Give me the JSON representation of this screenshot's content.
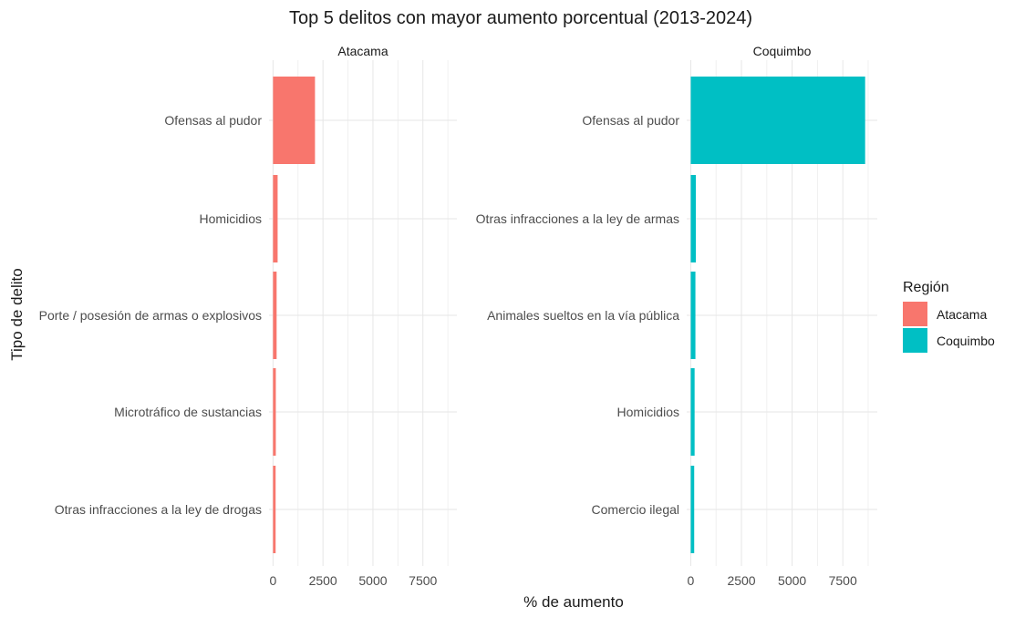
{
  "chart_data": {
    "type": "bar",
    "orientation": "horizontal",
    "title": "Top 5 delitos con mayor aumento porcentual (2013-2024)",
    "xlabel": "% de aumento",
    "ylabel": "Tipo de delito",
    "xlim": [
      -200,
      9200
    ],
    "x_ticks": [
      0,
      2500,
      5000,
      7500
    ],
    "grid": true,
    "legend": {
      "title": "Región",
      "position": "right",
      "entries": [
        {
          "name": "Atacama",
          "color": "#F8766D"
        },
        {
          "name": "Coquimbo",
          "color": "#00BFC4"
        }
      ]
    },
    "panels": [
      {
        "name": "Atacama",
        "color": "#F8766D",
        "categories": [
          "Ofensas al pudor",
          "Homicidios",
          "Porte / posesión de armas o explosivos",
          "Microtráfico de sustancias",
          "Otras infracciones a la ley de drogas"
        ],
        "values": [
          2100,
          230,
          180,
          140,
          130
        ]
      },
      {
        "name": "Coquimbo",
        "color": "#00BFC4",
        "categories": [
          "Ofensas al pudor",
          "Otras infracciones a la ley de armas",
          "Animales sueltos en la vía pública",
          "Homicidios",
          "Comercio ilegal"
        ],
        "values": [
          8600,
          250,
          230,
          190,
          170
        ]
      }
    ]
  }
}
